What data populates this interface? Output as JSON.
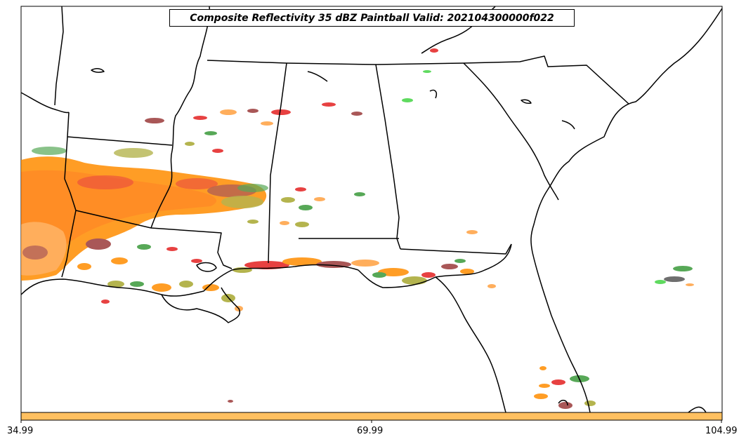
{
  "map": {
    "title": "Composite Reflectivity 35 dBZ Paintball Valid: 202104300000f022",
    "colors": {
      "background": "#ffffff",
      "boundaries": "#000000",
      "orange": "#ff8c00",
      "light_orange": "#ffa040",
      "red": "#e32020",
      "dark_red": "#9b3a3a",
      "olive": "#a8a830",
      "green": "#3a9a3a",
      "bright_green": "#44d444",
      "gray": "#555555",
      "colorbar": "#ffc060"
    },
    "colorbar": {
      "ticks": [
        "34.99",
        "69.99",
        "104.99"
      ]
    }
  }
}
